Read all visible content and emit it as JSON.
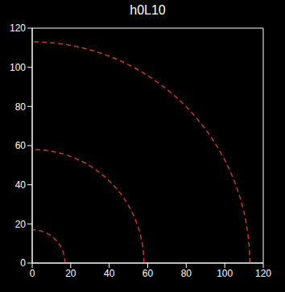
{
  "chart_data": {
    "type": "line",
    "title": "h0L10",
    "xlim": [
      0,
      120
    ],
    "ylim": [
      0,
      120
    ],
    "xticks": [
      0,
      20,
      40,
      60,
      80,
      100,
      120
    ],
    "yticks": [
      0,
      20,
      40,
      60,
      80,
      100,
      120
    ],
    "grid": false,
    "arcs": {
      "radii": [
        17,
        58,
        113
      ],
      "color": "#c0392b",
      "line_style": "dashed"
    }
  }
}
